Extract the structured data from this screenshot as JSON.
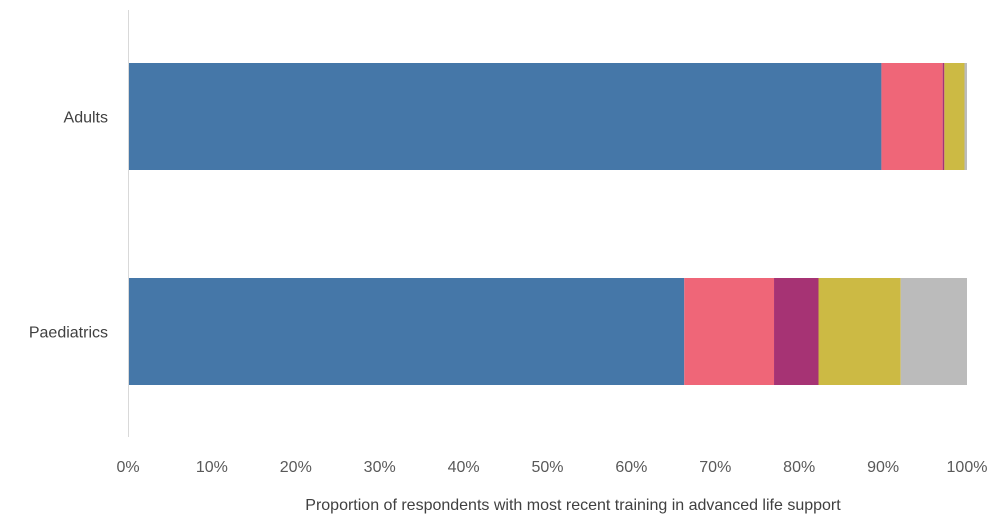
{
  "chart_data": {
    "type": "bar",
    "orientation": "horizontal",
    "stacked": true,
    "title": "",
    "xlabel": "Proportion of respondents with most recent training in advanced life support",
    "ylabel": "",
    "categories": [
      "Adults",
      "Paediatrics"
    ],
    "xlim": [
      0,
      100
    ],
    "x_ticks": [
      "0%",
      "10%",
      "20%",
      "30%",
      "40%",
      "50%",
      "60%",
      "70%",
      "80%",
      "90%",
      "100%"
    ],
    "grid": false,
    "legend": "none",
    "series": [
      {
        "color": "#4577a8",
        "values": [
          89.8,
          66.3
        ]
      },
      {
        "color": "#ef6678",
        "values": [
          7.3,
          10.7
        ]
      },
      {
        "color": "#a63374",
        "values": [
          0.2,
          5.3
        ]
      },
      {
        "color": "#ccba44",
        "values": [
          2.4,
          9.8
        ]
      },
      {
        "color": "#bbbbbb",
        "values": [
          0.3,
          7.9
        ]
      }
    ]
  }
}
